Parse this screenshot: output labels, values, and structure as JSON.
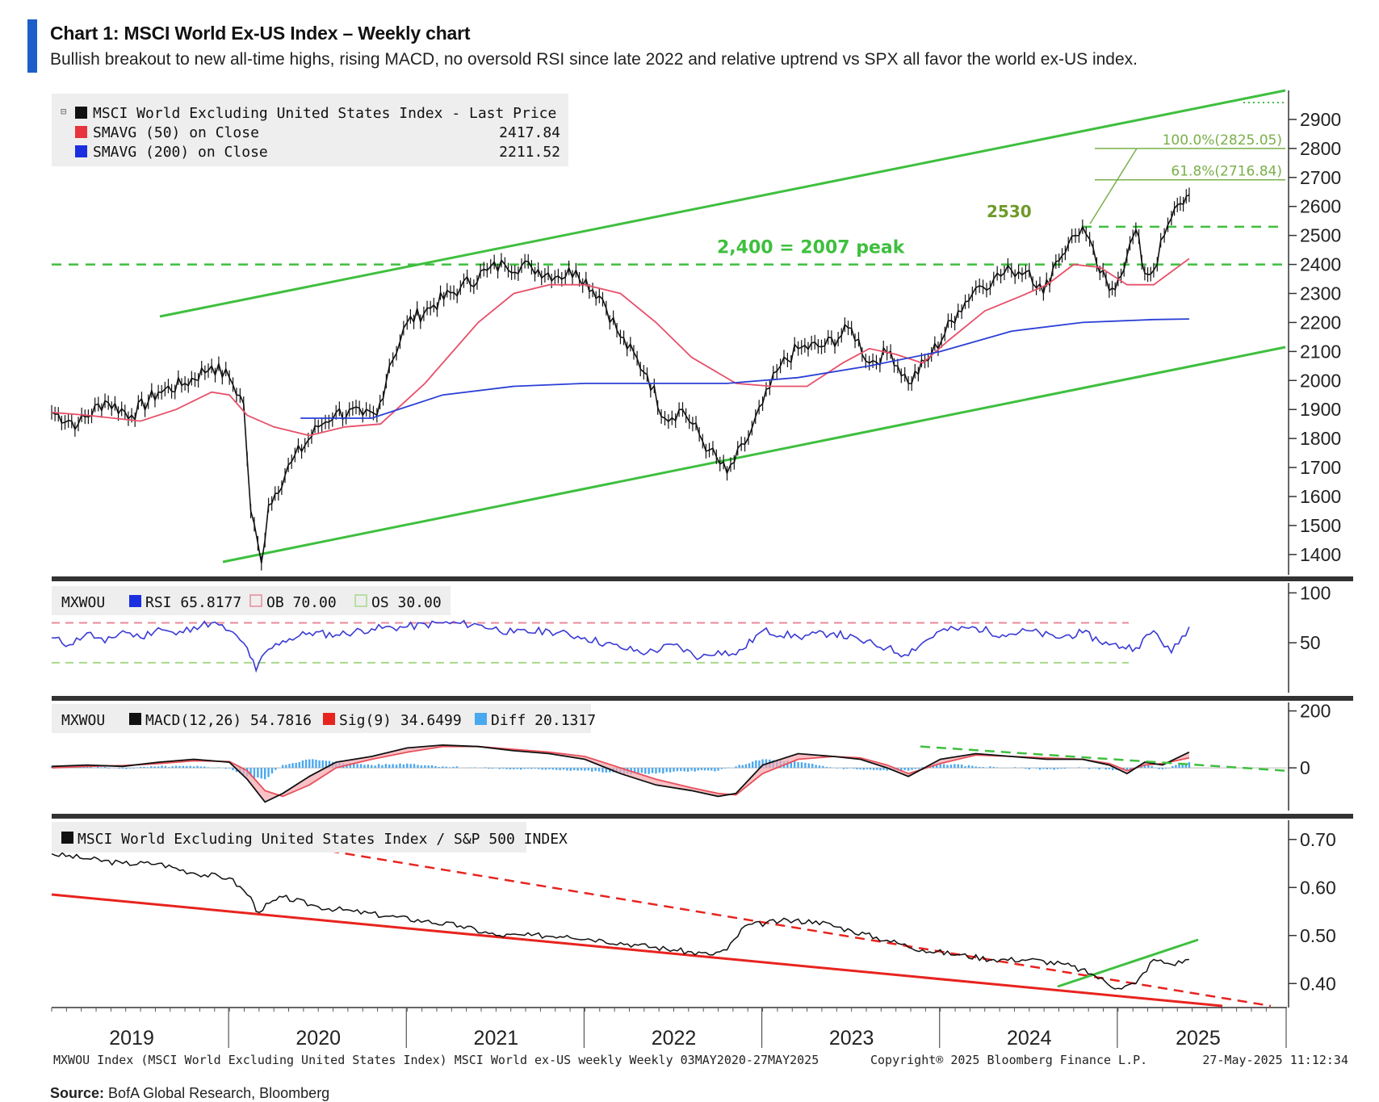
{
  "header": {
    "title": "Chart 1: MSCI World Ex-US Index – Weekly chart",
    "subtitle": "Bullish breakout to new all-time highs, rising MACD, no oversold RSI since late 2022 and relative uptrend vs SPX all favor the world ex-US index."
  },
  "footer": {
    "bloomberg_line": "MXWOU Index (MSCI World Excluding United States Index) MSCI World ex-US weekly  Weekly 03MAY2020-27MAY2025",
    "copyright": "Copyright® 2025 Bloomberg Finance L.P.",
    "timestamp": "27-May-2025 11:12:34",
    "source_label": "Source:",
    "source_text": "BofA Global Research, Bloomberg"
  },
  "colors": {
    "price": "#111111",
    "sma50": "#e8506a",
    "sma200": "#2a3fd6",
    "channel": "#3fbf3f",
    "rsi": "#3a3ad6",
    "ob": "#e88a9a",
    "os": "#a8d88a",
    "macd": "#111111",
    "signal": "#e8505a",
    "diff": "#4aa8f0",
    "trend_red": "#e8231e",
    "panel_sep": "#333333"
  },
  "chart_data": [
    {
      "type": "line",
      "panel": "price",
      "legend": [
        {
          "label": "MSCI World Excluding United States Index - Last Price",
          "value": "",
          "color": "#111111"
        },
        {
          "label": "SMAVG (50)  on Close",
          "value": "2417.84",
          "color": "#e8343c"
        },
        {
          "label": "SMAVG (200)  on Close",
          "value": "2211.52",
          "color": "#1b2fe0"
        }
      ],
      "ylim": [
        1330,
        3000
      ],
      "yticks": [
        1400,
        1500,
        1600,
        1700,
        1800,
        1900,
        2000,
        2100,
        2200,
        2300,
        2400,
        2500,
        2600,
        2700,
        2800,
        2900
      ],
      "x_years": [
        "2019",
        "2020",
        "2021",
        "2022",
        "2023",
        "2024",
        "2025"
      ],
      "price_x": [
        2019.0,
        2019.15,
        2019.3,
        2019.45,
        2019.6,
        2019.75,
        2019.9,
        2020.0,
        2020.08,
        2020.12,
        2020.18,
        2020.22,
        2020.35,
        2020.5,
        2020.6,
        2020.75,
        2020.83,
        2020.9,
        2021.0,
        2021.15,
        2021.3,
        2021.45,
        2021.55,
        2021.7,
        2021.85,
        2021.95,
        2022.1,
        2022.2,
        2022.35,
        2022.45,
        2022.55,
        2022.7,
        2022.8,
        2022.9,
        2023.0,
        2023.1,
        2023.2,
        2023.35,
        2023.5,
        2023.6,
        2023.72,
        2023.82,
        2023.95,
        2024.1,
        2024.2,
        2024.3,
        2024.4,
        2024.5,
        2024.58,
        2024.65,
        2024.72,
        2024.8,
        2024.88,
        2024.95,
        2025.0,
        2025.05,
        2025.1,
        2025.15,
        2025.2,
        2025.26,
        2025.3,
        2025.35,
        2025.4
      ],
      "price": [
        1890,
        1850,
        1930,
        1880,
        1960,
        1990,
        2050,
        2010,
        1920,
        1550,
        1370,
        1570,
        1720,
        1840,
        1890,
        1880,
        1880,
        2050,
        2200,
        2260,
        2320,
        2380,
        2400,
        2390,
        2360,
        2380,
        2280,
        2150,
        2020,
        1870,
        1900,
        1760,
        1680,
        1780,
        1920,
        2050,
        2110,
        2120,
        2180,
        2060,
        2100,
        1990,
        2090,
        2240,
        2320,
        2350,
        2380,
        2380,
        2300,
        2410,
        2470,
        2530,
        2400,
        2310,
        2350,
        2430,
        2520,
        2370,
        2380,
        2500,
        2560,
        2610,
        2640
      ],
      "sma50_x": [
        2019.0,
        2019.2,
        2019.5,
        2019.7,
        2019.9,
        2020.0,
        2020.1,
        2020.25,
        2020.45,
        2020.65,
        2020.85,
        2021.1,
        2021.4,
        2021.6,
        2021.8,
        2022.0,
        2022.2,
        2022.4,
        2022.6,
        2022.85,
        2023.05,
        2023.25,
        2023.45,
        2023.6,
        2023.75,
        2023.9,
        2024.05,
        2024.25,
        2024.45,
        2024.6,
        2024.75,
        2024.9,
        2025.05,
        2025.2,
        2025.4
      ],
      "sma50": [
        1890,
        1880,
        1860,
        1900,
        1960,
        1950,
        1880,
        1840,
        1810,
        1840,
        1850,
        1990,
        2200,
        2300,
        2330,
        2330,
        2300,
        2200,
        2080,
        1990,
        1980,
        1980,
        2060,
        2110,
        2090,
        2060,
        2140,
        2240,
        2290,
        2330,
        2400,
        2390,
        2330,
        2330,
        2420
      ],
      "sma200_x": [
        2020.4,
        2020.8,
        2021.2,
        2021.6,
        2022.0,
        2022.4,
        2022.8,
        2023.2,
        2023.6,
        2024.0,
        2024.4,
        2024.8,
        2025.2,
        2025.4
      ],
      "sma200": [
        1870,
        1870,
        1950,
        1980,
        1990,
        1990,
        1990,
        2010,
        2050,
        2100,
        2170,
        2200,
        2210,
        2212
      ],
      "annotations": [
        {
          "text": "2,400 = 2007 peak",
          "y": 2400
        },
        {
          "text": "2530",
          "y": 2530
        },
        {
          "text": "100.0%(2825.05)",
          "y": 2825.05
        },
        {
          "text": "61.8%(2716.84)",
          "y": 2716.84
        }
      ]
    },
    {
      "type": "line",
      "panel": "rsi",
      "legend": [
        {
          "label": "MXWOU",
          "value": "",
          "color": ""
        },
        {
          "label": "RSI 65.8177",
          "value": "",
          "color": "#1b2fe0"
        },
        {
          "label": "OB 70.00",
          "value": "",
          "color": "#e88a9a"
        },
        {
          "label": "OS 30.00",
          "value": "",
          "color": "#a8d88a"
        }
      ],
      "ylim": [
        0,
        110
      ],
      "yticks": [
        50,
        100
      ],
      "x": [
        2019.0,
        2019.1,
        2019.2,
        2019.3,
        2019.4,
        2019.5,
        2019.6,
        2019.7,
        2019.8,
        2019.9,
        2020.0,
        2020.1,
        2020.15,
        2020.2,
        2020.3,
        2020.45,
        2020.6,
        2020.8,
        2021.0,
        2021.2,
        2021.4,
        2021.6,
        2021.8,
        2022.0,
        2022.2,
        2022.35,
        2022.5,
        2022.65,
        2022.75,
        2022.85,
        2023.0,
        2023.2,
        2023.4,
        2023.55,
        2023.7,
        2023.8,
        2024.0,
        2024.2,
        2024.35,
        2024.5,
        2024.65,
        2024.8,
        2024.95,
        2025.1,
        2025.2,
        2025.3,
        2025.4
      ],
      "values": [
        55,
        48,
        60,
        50,
        62,
        55,
        65,
        58,
        66,
        70,
        62,
        45,
        22,
        40,
        52,
        60,
        58,
        64,
        66,
        70,
        68,
        60,
        62,
        55,
        45,
        40,
        48,
        35,
        42,
        38,
        62,
        56,
        60,
        52,
        45,
        38,
        62,
        65,
        58,
        62,
        55,
        60,
        48,
        45,
        62,
        40,
        66
      ]
    },
    {
      "type": "line",
      "panel": "macd",
      "legend": [
        {
          "label": "MXWOU",
          "value": "",
          "color": ""
        },
        {
          "label": "MACD(12,26) 54.7816",
          "value": "",
          "color": "#111111"
        },
        {
          "label": "Sig(9) 34.6499",
          "value": "",
          "color": "#e8231e"
        },
        {
          "label": "Diff 20.1317",
          "value": "",
          "color": "#4aa8f0"
        }
      ],
      "ylim": [
        -150,
        230
      ],
      "yticks": [
        0,
        200
      ],
      "x": [
        2019.0,
        2019.2,
        2019.4,
        2019.6,
        2019.8,
        2020.0,
        2020.1,
        2020.2,
        2020.3,
        2020.45,
        2020.6,
        2020.8,
        2021.0,
        2021.2,
        2021.4,
        2021.6,
        2021.8,
        2022.0,
        2022.2,
        2022.4,
        2022.6,
        2022.75,
        2022.85,
        2023.0,
        2023.2,
        2023.4,
        2023.55,
        2023.7,
        2023.82,
        2024.0,
        2024.2,
        2024.4,
        2024.6,
        2024.8,
        2024.95,
        2025.05,
        2025.15,
        2025.25,
        2025.4
      ],
      "macd": [
        5,
        10,
        5,
        20,
        30,
        20,
        -40,
        -120,
        -90,
        -30,
        20,
        40,
        70,
        80,
        75,
        60,
        50,
        30,
        -20,
        -60,
        -80,
        -100,
        -90,
        10,
        50,
        40,
        30,
        0,
        -30,
        30,
        50,
        40,
        30,
        30,
        10,
        -20,
        20,
        10,
        55
      ],
      "signal": [
        0,
        5,
        8,
        15,
        25,
        22,
        -10,
        -80,
        -100,
        -60,
        0,
        30,
        55,
        75,
        75,
        65,
        55,
        40,
        0,
        -40,
        -70,
        -90,
        -95,
        -20,
        30,
        40,
        35,
        10,
        -20,
        15,
        45,
        40,
        35,
        30,
        15,
        -10,
        10,
        15,
        35
      ],
      "diff": [
        5,
        5,
        -3,
        5,
        5,
        -2,
        -30,
        -40,
        10,
        30,
        20,
        10,
        15,
        5,
        0,
        -5,
        -5,
        -10,
        -20,
        -20,
        -10,
        -10,
        5,
        30,
        20,
        0,
        -5,
        -10,
        -10,
        15,
        5,
        0,
        -5,
        0,
        -5,
        -10,
        10,
        -5,
        20
      ]
    },
    {
      "type": "line",
      "panel": "ratio",
      "legend": [
        {
          "label": "MSCI World Excluding United States Index / S&P 500 INDEX",
          "value": "",
          "color": "#111111"
        }
      ],
      "ylim": [
        0.35,
        0.74
      ],
      "yticks": [
        0.4,
        0.5,
        0.6,
        0.7
      ],
      "x": [
        2019.0,
        2019.2,
        2019.4,
        2019.6,
        2019.8,
        2020.0,
        2020.12,
        2020.15,
        2020.3,
        2020.5,
        2020.7,
        2020.9,
        2021.1,
        2021.3,
        2021.5,
        2021.7,
        2021.9,
        2022.1,
        2022.3,
        2022.5,
        2022.7,
        2022.8,
        2022.9,
        2023.1,
        2023.3,
        2023.5,
        2023.7,
        2023.9,
        2024.1,
        2024.3,
        2024.5,
        2024.7,
        2024.85,
        2025.0,
        2025.1,
        2025.2,
        2025.3,
        2025.4
      ],
      "values": [
        0.67,
        0.66,
        0.65,
        0.65,
        0.63,
        0.62,
        0.58,
        0.55,
        0.58,
        0.56,
        0.55,
        0.54,
        0.53,
        0.52,
        0.5,
        0.5,
        0.5,
        0.49,
        0.48,
        0.47,
        0.46,
        0.47,
        0.52,
        0.53,
        0.53,
        0.51,
        0.49,
        0.47,
        0.46,
        0.45,
        0.45,
        0.44,
        0.42,
        0.39,
        0.4,
        0.45,
        0.44,
        0.45
      ]
    }
  ]
}
